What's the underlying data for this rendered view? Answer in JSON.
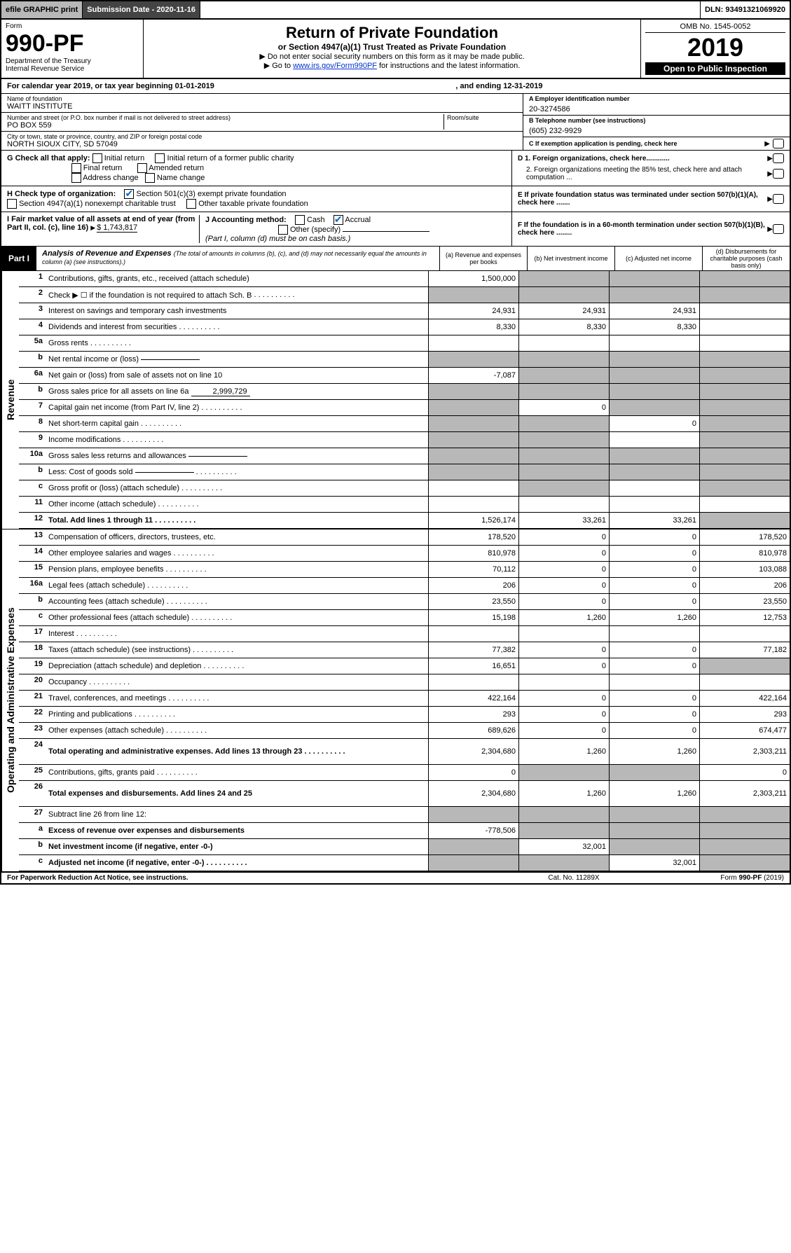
{
  "topbar": {
    "efile": "efile GRAPHIC print",
    "subdate_label": "Submission Date - 2020-11-16",
    "dln": "DLN: 93491321069920"
  },
  "header": {
    "form_label": "Form",
    "form_num": "990-PF",
    "dept": "Department of the Treasury",
    "irs": "Internal Revenue Service",
    "title": "Return of Private Foundation",
    "subtitle": "or Section 4947(a)(1) Trust Treated as Private Foundation",
    "instr1": "Do not enter social security numbers on this form as it may be made public.",
    "instr2_pre": "Go to ",
    "instr2_link": "www.irs.gov/Form990PF",
    "instr2_post": " for instructions and the latest information.",
    "omb": "OMB No. 1545-0052",
    "year": "2019",
    "open": "Open to Public Inspection"
  },
  "calyear": {
    "text": "For calendar year 2019, or tax year beginning 01-01-2019",
    "ending": ", and ending 12-31-2019"
  },
  "id": {
    "name_label": "Name of foundation",
    "name": "WAITT INSTITUTE",
    "addr_label": "Number and street (or P.O. box number if mail is not delivered to street address)",
    "addr": "PO BOX 559",
    "room_label": "Room/suite",
    "city_label": "City or town, state or province, country, and ZIP or foreign postal code",
    "city": "NORTH SIOUX CITY, SD  57049",
    "ein_label": "A Employer identification number",
    "ein": "20-3274586",
    "tel_label": "B Telephone number (see instructions)",
    "tel": "(605) 232-9929",
    "c_label": "C If exemption application is pending, check here"
  },
  "g": {
    "label": "G Check all that apply:",
    "opts": [
      "Initial return",
      "Initial return of a former public charity",
      "Final return",
      "Amended return",
      "Address change",
      "Name change"
    ]
  },
  "d": {
    "d1": "D 1. Foreign organizations, check here............",
    "d2": "2. Foreign organizations meeting the 85% test, check here and attach computation ..."
  },
  "h": {
    "label": "H Check type of organization:",
    "opt1": "Section 501(c)(3) exempt private foundation",
    "opt2": "Section 4947(a)(1) nonexempt charitable trust",
    "opt3": "Other taxable private foundation"
  },
  "e": {
    "label": "E  If private foundation status was terminated under section 507(b)(1)(A), check here ......."
  },
  "i": {
    "label": "I Fair market value of all assets at end of year (from Part II, col. (c), line 16)",
    "value": "$  1,743,817"
  },
  "j": {
    "label": "J Accounting method:",
    "cash": "Cash",
    "accrual": "Accrual",
    "other": "Other (specify)",
    "note": "(Part I, column (d) must be on cash basis.)"
  },
  "f": {
    "label": "F  If the foundation is in a 60-month termination under section 507(b)(1)(B), check here ........"
  },
  "part1": {
    "tab": "Part I",
    "title": "Analysis of Revenue and Expenses",
    "note": "(The total of amounts in columns (b), (c), and (d) may not necessarily equal the amounts in column (a) (see instructions).)",
    "cols": {
      "a": "(a) Revenue and expenses per books",
      "b": "(b) Net investment income",
      "c": "(c) Adjusted net income",
      "d": "(d) Disbursements for charitable purposes (cash basis only)"
    }
  },
  "vtabs": {
    "rev": "Revenue",
    "exp": "Operating and Administrative Expenses"
  },
  "rows": [
    {
      "n": "1",
      "d": "Contributions, gifts, grants, etc., received (attach schedule)",
      "a": "1,500,000",
      "b": "",
      "c": "",
      "ds": "",
      "shade_b": true,
      "shade_c": true,
      "shade_d": true
    },
    {
      "n": "2",
      "d": "Check ▶ ☐ if the foundation is not required to attach Sch. B",
      "a": "",
      "b": "",
      "c": "",
      "ds": "",
      "shade_a": true,
      "shade_b": true,
      "shade_c": true,
      "shade_d": true,
      "dots": true
    },
    {
      "n": "3",
      "d": "Interest on savings and temporary cash investments",
      "a": "24,931",
      "b": "24,931",
      "c": "24,931",
      "ds": ""
    },
    {
      "n": "4",
      "d": "Dividends and interest from securities",
      "a": "8,330",
      "b": "8,330",
      "c": "8,330",
      "ds": "",
      "dots": true
    },
    {
      "n": "5a",
      "d": "Gross rents",
      "a": "",
      "b": "",
      "c": "",
      "ds": "",
      "dots": true
    },
    {
      "n": "b",
      "d": "Net rental income or (loss)",
      "a": "",
      "b": "",
      "c": "",
      "ds": "",
      "shade_a": true,
      "shade_b": true,
      "shade_c": true,
      "shade_d": true,
      "inline": true
    },
    {
      "n": "6a",
      "d": "Net gain or (loss) from sale of assets not on line 10",
      "a": "-7,087",
      "b": "",
      "c": "",
      "ds": "",
      "shade_b": true,
      "shade_c": true,
      "shade_d": true
    },
    {
      "n": "b",
      "d": "Gross sales price for all assets on line 6a",
      "a": "",
      "b": "",
      "c": "",
      "ds": "",
      "shade_a": true,
      "shade_b": true,
      "shade_c": true,
      "shade_d": true,
      "inline": true,
      "inline_val": "2,999,729"
    },
    {
      "n": "7",
      "d": "Capital gain net income (from Part IV, line 2)",
      "a": "",
      "b": "0",
      "c": "",
      "ds": "",
      "shade_a": true,
      "shade_c": true,
      "shade_d": true,
      "dots": true
    },
    {
      "n": "8",
      "d": "Net short-term capital gain",
      "a": "",
      "b": "",
      "c": "0",
      "ds": "",
      "shade_a": true,
      "shade_b": true,
      "shade_d": true,
      "dots": true
    },
    {
      "n": "9",
      "d": "Income modifications",
      "a": "",
      "b": "",
      "c": "",
      "ds": "",
      "shade_a": true,
      "shade_b": true,
      "shade_d": true,
      "dots": true
    },
    {
      "n": "10a",
      "d": "Gross sales less returns and allowances",
      "a": "",
      "b": "",
      "c": "",
      "ds": "",
      "shade_a": true,
      "shade_b": true,
      "shade_c": true,
      "shade_d": true,
      "inline": true
    },
    {
      "n": "b",
      "d": "Less: Cost of goods sold",
      "a": "",
      "b": "",
      "c": "",
      "ds": "",
      "shade_a": true,
      "shade_b": true,
      "shade_c": true,
      "shade_d": true,
      "inline": true,
      "dots": true
    },
    {
      "n": "c",
      "d": "Gross profit or (loss) (attach schedule)",
      "a": "",
      "b": "",
      "c": "",
      "ds": "",
      "shade_b": true,
      "shade_d": true,
      "dots": true
    },
    {
      "n": "11",
      "d": "Other income (attach schedule)",
      "a": "",
      "b": "",
      "c": "",
      "ds": "",
      "dots": true
    },
    {
      "n": "12",
      "d": "Total. Add lines 1 through 11",
      "a": "1,526,174",
      "b": "33,261",
      "c": "33,261",
      "ds": "",
      "bold": true,
      "shade_d": true,
      "dots": true
    }
  ],
  "exprows": [
    {
      "n": "13",
      "d": "Compensation of officers, directors, trustees, etc.",
      "a": "178,520",
      "b": "0",
      "c": "0",
      "ds": "178,520"
    },
    {
      "n": "14",
      "d": "Other employee salaries and wages",
      "a": "810,978",
      "b": "0",
      "c": "0",
      "ds": "810,978",
      "dots": true
    },
    {
      "n": "15",
      "d": "Pension plans, employee benefits",
      "a": "70,112",
      "b": "0",
      "c": "0",
      "ds": "103,088",
      "dots": true
    },
    {
      "n": "16a",
      "d": "Legal fees (attach schedule)",
      "a": "206",
      "b": "0",
      "c": "0",
      "ds": "206",
      "dots": true
    },
    {
      "n": "b",
      "d": "Accounting fees (attach schedule)",
      "a": "23,550",
      "b": "0",
      "c": "0",
      "ds": "23,550",
      "dots": true
    },
    {
      "n": "c",
      "d": "Other professional fees (attach schedule)",
      "a": "15,198",
      "b": "1,260",
      "c": "1,260",
      "ds": "12,753",
      "dots": true
    },
    {
      "n": "17",
      "d": "Interest",
      "a": "",
      "b": "",
      "c": "",
      "ds": "",
      "dots": true
    },
    {
      "n": "18",
      "d": "Taxes (attach schedule) (see instructions)",
      "a": "77,382",
      "b": "0",
      "c": "0",
      "ds": "77,182",
      "dots": true
    },
    {
      "n": "19",
      "d": "Depreciation (attach schedule) and depletion",
      "a": "16,651",
      "b": "0",
      "c": "0",
      "ds": "",
      "shade_d": true,
      "dots": true
    },
    {
      "n": "20",
      "d": "Occupancy",
      "a": "",
      "b": "",
      "c": "",
      "ds": "",
      "dots": true
    },
    {
      "n": "21",
      "d": "Travel, conferences, and meetings",
      "a": "422,164",
      "b": "0",
      "c": "0",
      "ds": "422,164",
      "dots": true
    },
    {
      "n": "22",
      "d": "Printing and publications",
      "a": "293",
      "b": "0",
      "c": "0",
      "ds": "293",
      "dots": true
    },
    {
      "n": "23",
      "d": "Other expenses (attach schedule)",
      "a": "689,626",
      "b": "0",
      "c": "0",
      "ds": "674,477",
      "dots": true
    },
    {
      "n": "24",
      "d": "Total operating and administrative expenses. Add lines 13 through 23",
      "a": "2,304,680",
      "b": "1,260",
      "c": "1,260",
      "ds": "2,303,211",
      "bold": true,
      "dots": true,
      "tall": true
    },
    {
      "n": "25",
      "d": "Contributions, gifts, grants paid",
      "a": "0",
      "b": "",
      "c": "",
      "ds": "0",
      "shade_b": true,
      "shade_c": true,
      "dots": true
    },
    {
      "n": "26",
      "d": "Total expenses and disbursements. Add lines 24 and 25",
      "a": "2,304,680",
      "b": "1,260",
      "c": "1,260",
      "ds": "2,303,211",
      "bold": true,
      "tall": true
    },
    {
      "n": "27",
      "d": "Subtract line 26 from line 12:",
      "a": "",
      "b": "",
      "c": "",
      "ds": "",
      "shade_a": true,
      "shade_b": true,
      "shade_c": true,
      "shade_d": true
    },
    {
      "n": "a",
      "d": "Excess of revenue over expenses and disbursements",
      "a": "-778,506",
      "b": "",
      "c": "",
      "ds": "",
      "bold": true,
      "shade_b": true,
      "shade_c": true,
      "shade_d": true
    },
    {
      "n": "b",
      "d": "Net investment income (if negative, enter -0-)",
      "a": "",
      "b": "32,001",
      "c": "",
      "ds": "",
      "bold": true,
      "shade_a": true,
      "shade_c": true,
      "shade_d": true
    },
    {
      "n": "c",
      "d": "Adjusted net income (if negative, enter -0-)",
      "a": "",
      "b": "",
      "c": "32,001",
      "ds": "",
      "bold": true,
      "shade_a": true,
      "shade_b": true,
      "shade_d": true,
      "dots": true
    }
  ],
  "footer": {
    "l": "For Paperwork Reduction Act Notice, see instructions.",
    "c": "Cat. No. 11289X",
    "r": "Form 990-PF (2019)"
  }
}
